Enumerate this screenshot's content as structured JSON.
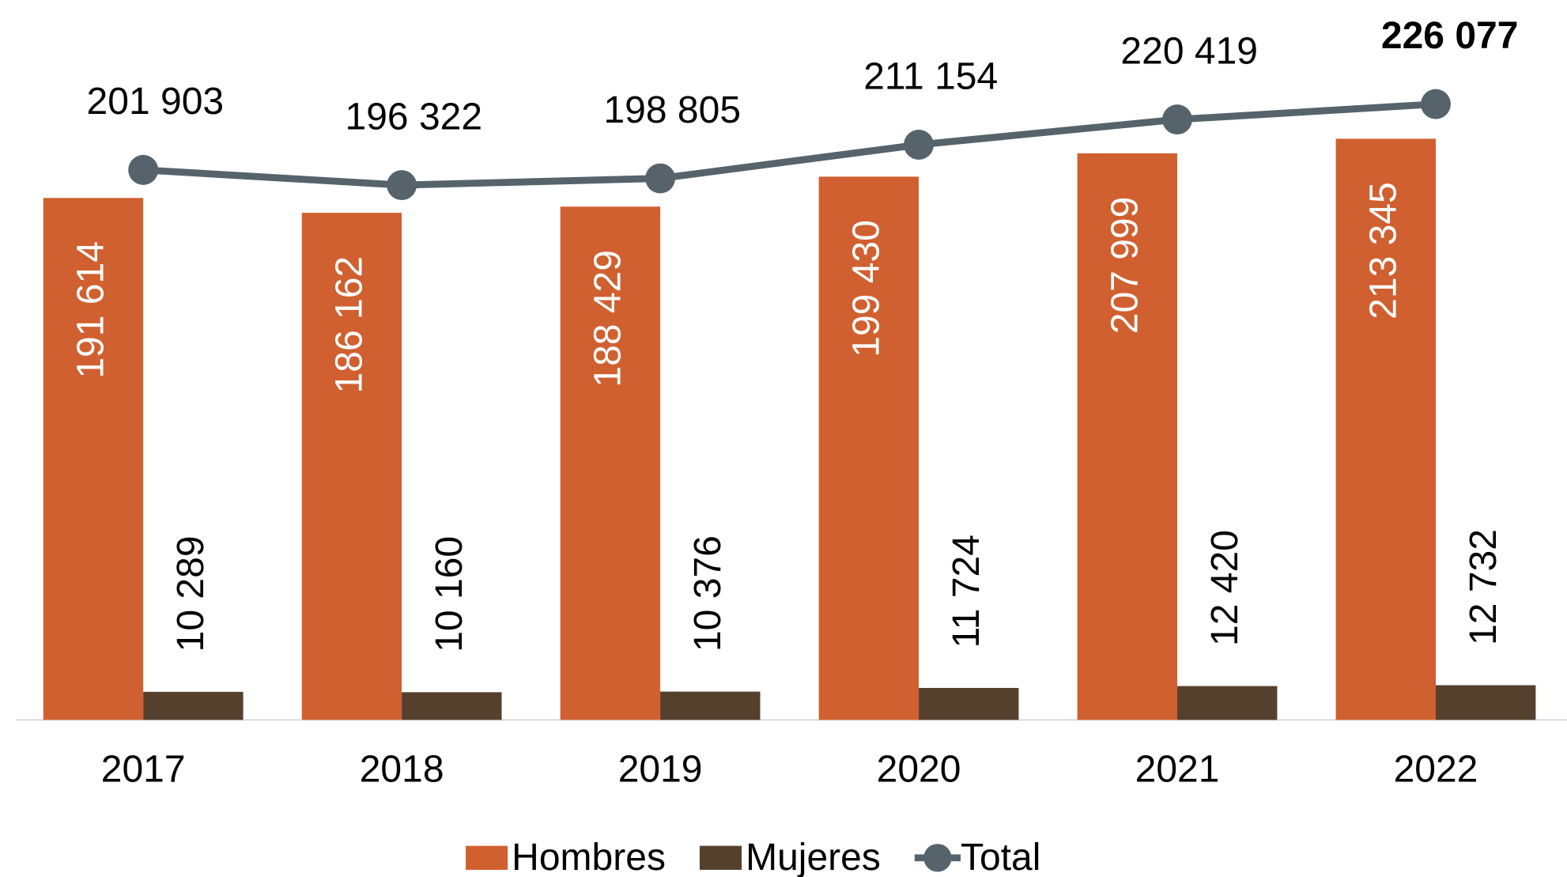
{
  "chart_data": {
    "type": "bar",
    "categories": [
      "2017",
      "2018",
      "2019",
      "2020",
      "2021",
      "2022"
    ],
    "series": [
      {
        "name": "Hombres",
        "color": "#d06030",
        "values": [
          191614,
          186162,
          188429,
          199430,
          207999,
          213345
        ],
        "value_labels": [
          "191 614",
          "186 162",
          "188 429",
          "199 430",
          "207 999",
          "213 345"
        ]
      },
      {
        "name": "Mujeres",
        "color": "#553f2d",
        "values": [
          10289,
          10160,
          10376,
          11724,
          12420,
          12732
        ],
        "value_labels": [
          "10 289",
          "10 160",
          "10 376",
          "11 724",
          "12 420",
          "12 732"
        ]
      },
      {
        "name": "Total",
        "type": "line",
        "color": "#56636b",
        "values": [
          201903,
          196322,
          198805,
          211154,
          220419,
          226077
        ],
        "value_labels": [
          "201 903",
          "196 322",
          "198 805",
          "211 154",
          "220 419",
          "226 077"
        ]
      }
    ],
    "ylim": [
      0,
      240000
    ],
    "legend": "bottom"
  }
}
